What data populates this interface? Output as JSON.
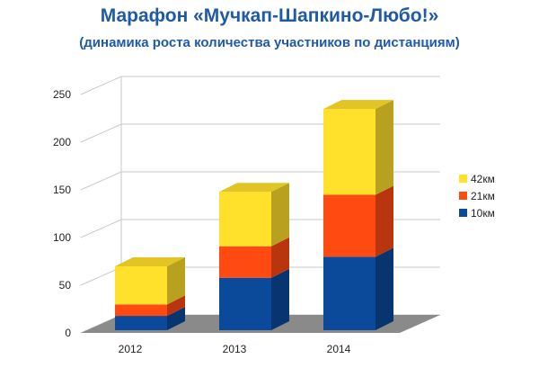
{
  "header": {
    "title": "Марафон «Мучкап-Шапкино-Любо!»",
    "subtitle": "(динамика роста количества участников по дистанциям)"
  },
  "chart_data": {
    "type": "bar",
    "stacked": true,
    "three_d": true,
    "categories": [
      "2012",
      "2013",
      "2014"
    ],
    "series": [
      {
        "name": "10км",
        "color": "#0b4a9a",
        "values": [
          15,
          55,
          77
        ]
      },
      {
        "name": "21км",
        "color": "#ff4a12",
        "values": [
          12,
          33,
          65
        ]
      },
      {
        "name": "42км",
        "color": "#ffe02a",
        "values": [
          40,
          57,
          90
        ]
      }
    ],
    "title": "Марафон «Мучкап-Шапкино-Любо!»",
    "subtitle": "(динамика роста количества участников по дистанциям)",
    "xlabel": "",
    "ylabel": "",
    "ylim": [
      0,
      250
    ],
    "yticks": [
      0,
      50,
      100,
      150,
      200,
      250
    ],
    "grid": true,
    "legend": "right"
  }
}
